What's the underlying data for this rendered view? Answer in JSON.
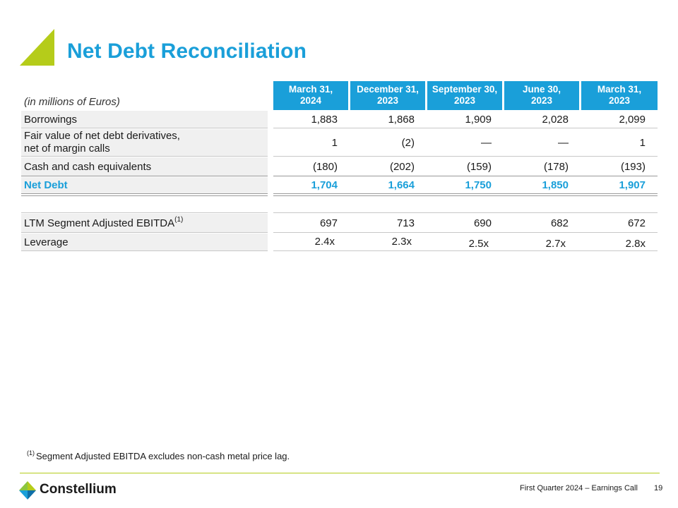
{
  "header": {
    "title": "Net Debt Reconciliation"
  },
  "table": {
    "units_label": "(in millions of Euros)",
    "columns": [
      {
        "line1": "March 31,",
        "line2": "2024"
      },
      {
        "line1": "December 31,",
        "line2": "2023"
      },
      {
        "line1": "September 30,",
        "line2": "2023"
      },
      {
        "line1": "June 30,",
        "line2": "2023"
      },
      {
        "line1": "March 31,",
        "line2": "2023"
      }
    ],
    "rows": [
      {
        "label": "Borrowings",
        "values": [
          "1,883",
          "1,868",
          "1,909",
          "2,028",
          "2,099"
        ]
      },
      {
        "label_line1": "Fair value of net debt derivatives,",
        "label_line2": "net of margin calls",
        "values": [
          "1",
          "(2)",
          "—",
          "—",
          "1"
        ]
      },
      {
        "label": "Cash and cash equivalents",
        "values": [
          "(180)",
          "(202)",
          "(159)",
          "(178)",
          "(193)"
        ]
      },
      {
        "label": "Net Debt",
        "values": [
          "1,704",
          "1,664",
          "1,750",
          "1,850",
          "1,907"
        ]
      }
    ],
    "leverage_rows": [
      {
        "label": "LTM Segment Adjusted EBITDA",
        "footnote_ref": "(1)",
        "values": [
          "697",
          "713",
          "690",
          "682",
          "672"
        ]
      },
      {
        "label": "Leverage",
        "values": [
          "2.4x",
          "2.3x",
          "2.5x",
          "2.7x",
          "2.8x"
        ]
      }
    ]
  },
  "footnote": {
    "marker": "(1)",
    "text": "Segment Adjusted EBITDA excludes non-cash metal price lag."
  },
  "footer": {
    "brand": "Constellium",
    "event": "First Quarter 2024 – Earnings Call",
    "page_number": "19"
  },
  "colors": {
    "accent_blue": "#1a9fd9",
    "accent_green": "#b5cc1a"
  },
  "icons": {
    "logo": "constellium-logo-icon",
    "accent": "title-accent-triangle"
  }
}
